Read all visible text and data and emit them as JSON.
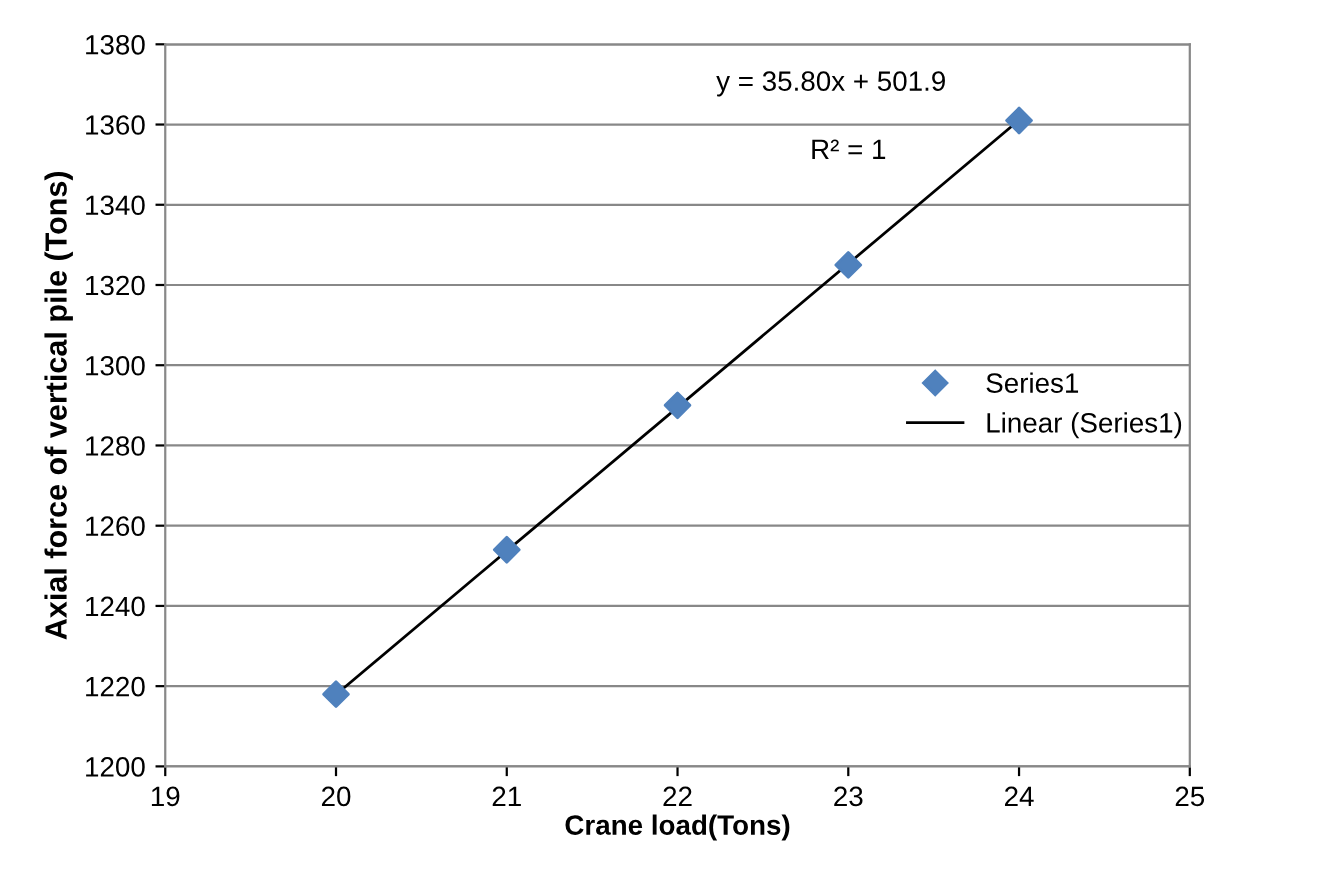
{
  "chart_data": {
    "type": "scatter",
    "xlabel": "Crane load(Tons)",
    "ylabel": "Axial force of vertical pile (Tons)",
    "x": [
      20,
      21,
      22,
      23,
      24
    ],
    "series": [
      {
        "name": "Series1",
        "color": "#4f81bd",
        "marker": "diamond",
        "values": [
          1218,
          1254,
          1290,
          1325,
          1361
        ]
      },
      {
        "name": "Linear (Series1)",
        "type": "line",
        "color": "#000000",
        "marker": "none",
        "line_style": "solid",
        "x": [
          20,
          24
        ],
        "values": [
          1217.9,
          1361.1
        ]
      }
    ],
    "annotations": [
      "y = 35.80x + 501.9",
      "R² = 1"
    ],
    "xlim": [
      19,
      25
    ],
    "xticks": [
      19,
      20,
      21,
      22,
      23,
      24,
      25
    ],
    "ylim": [
      1200,
      1380
    ],
    "yticks": [
      1200,
      1220,
      1240,
      1260,
      1280,
      1300,
      1320,
      1340,
      1360,
      1380
    ],
    "grid": "y",
    "legend": "right"
  }
}
